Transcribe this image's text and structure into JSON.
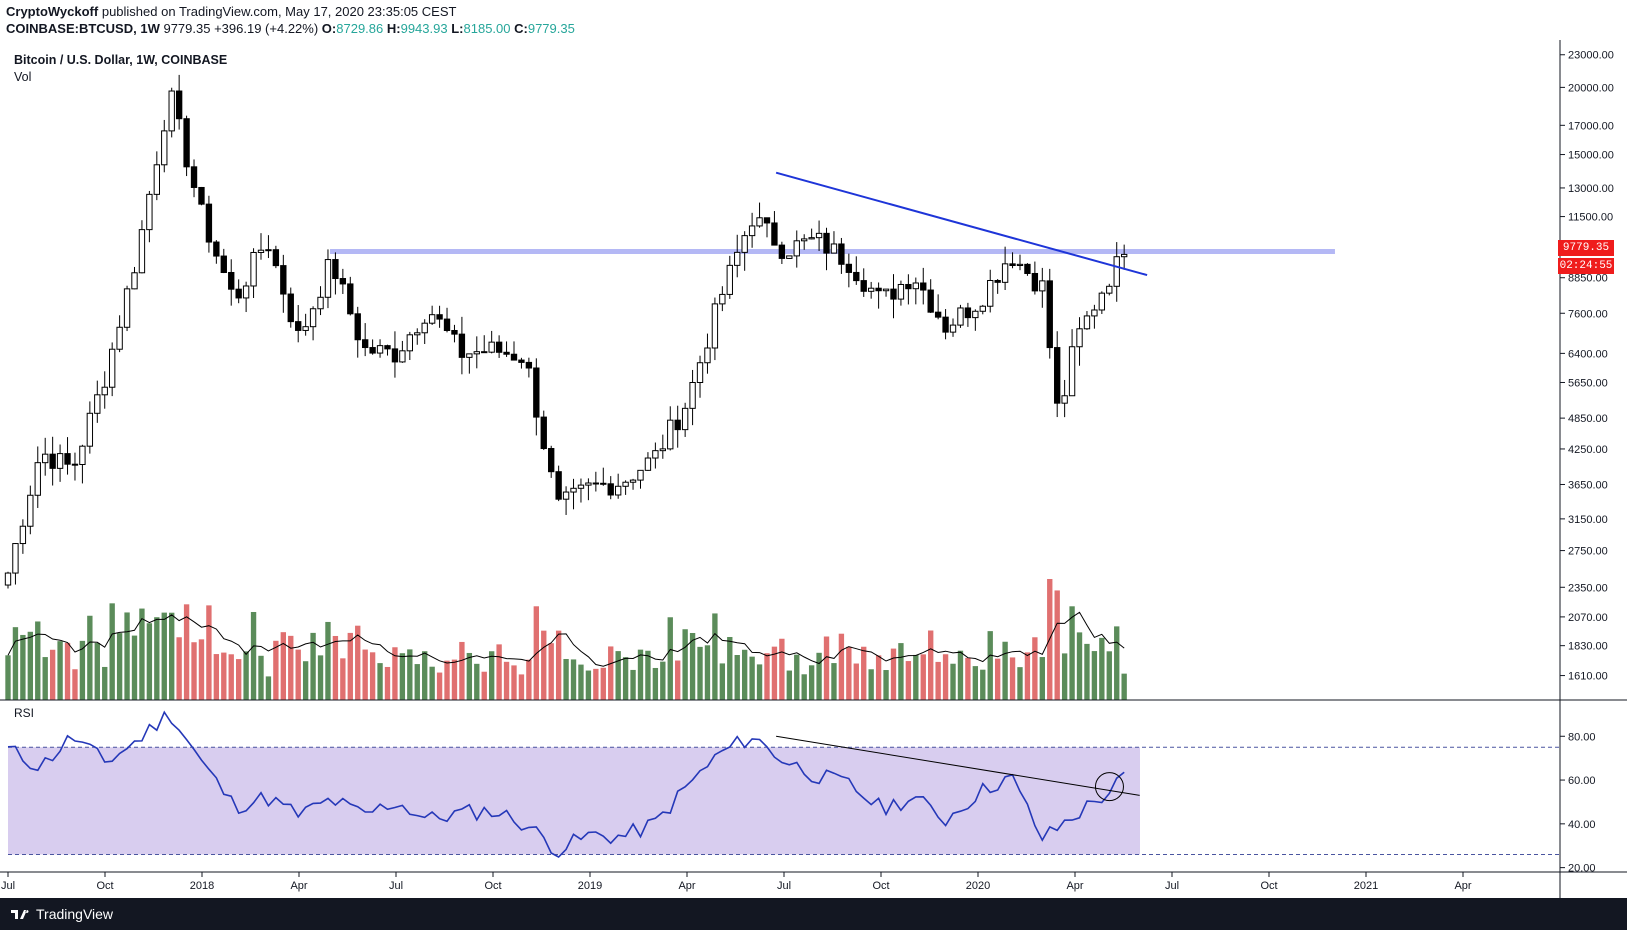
{
  "header": {
    "author": "CryptoWyckoff",
    "published": "published on TradingView.com, May 17, 2020 23:35:05 CEST",
    "symbol": "COINBASE:BTCUSD, 1W",
    "last": "9779.35",
    "change": "+396.19 (+4.22%)",
    "o_label": "O:",
    "o": "8729.86",
    "h_label": "H:",
    "h": "9943.93",
    "l_label": "L:",
    "l": "8185.00",
    "c_label": "C:",
    "c": "9779.35"
  },
  "legend": {
    "title": "Bitcoin / U.S. Dollar, 1W, COINBASE",
    "vol": "Vol"
  },
  "rsi_label": "RSI",
  "price_tag": {
    "last": "9779.35",
    "countdown": "02:24:55"
  },
  "footer": {
    "brand": "TradingView"
  },
  "colors": {
    "up_volume": "#5b8c5a",
    "down_volume": "#e07070",
    "trendline": "#1e35d8",
    "resistance": "#b4b8f5",
    "rsi_line": "#2538b8",
    "rsi_band": "#d8cdef",
    "tag": "#ef1c1c"
  },
  "chart_data": [
    {
      "type": "candlestick",
      "scale": "log",
      "ylim": [
        1450,
        24500
      ],
      "y_ticks": [
        "1610.00",
        "1830.00",
        "2070.00",
        "2350.00",
        "2750.00",
        "3150.00",
        "3650.00",
        "4250.00",
        "4850.00",
        "5650.00",
        "6400.00",
        "7600.00",
        "8850.00",
        "10000.00",
        "11500.00",
        "13000.00",
        "15000.00",
        "17000.00",
        "20000.00",
        "23000.00"
      ],
      "x_ticks": [
        "Jul",
        "Oct",
        "2018",
        "Apr",
        "Jul",
        "Oct",
        "2019",
        "Apr",
        "Jul",
        "Oct",
        "2020",
        "Apr",
        "Jul",
        "Oct",
        "2021",
        "Apr"
      ],
      "anchors": [
        {
          "date": "2017-07",
          "price": 2500
        },
        {
          "date": "2017-08",
          "price": 4200
        },
        {
          "date": "2017-09",
          "price": 3900
        },
        {
          "date": "2017-10",
          "price": 5800
        },
        {
          "date": "2017-11",
          "price": 9800
        },
        {
          "date": "2017-12",
          "price": 19500
        },
        {
          "date": "2018-01",
          "price": 11500
        },
        {
          "date": "2018-02",
          "price": 8000
        },
        {
          "date": "2018-03",
          "price": 10500
        },
        {
          "date": "2018-04",
          "price": 6800
        },
        {
          "date": "2018-05",
          "price": 9500
        },
        {
          "date": "2018-06",
          "price": 6500
        },
        {
          "date": "2018-07",
          "price": 6400
        },
        {
          "date": "2018-08",
          "price": 7800
        },
        {
          "date": "2018-09",
          "price": 6400
        },
        {
          "date": "2018-10",
          "price": 6500
        },
        {
          "date": "2018-11",
          "price": 6300
        },
        {
          "date": "2018-12",
          "price": 3300
        },
        {
          "date": "2019-01",
          "price": 3600
        },
        {
          "date": "2019-02",
          "price": 3700
        },
        {
          "date": "2019-03",
          "price": 4100
        },
        {
          "date": "2019-04",
          "price": 5200
        },
        {
          "date": "2019-05",
          "price": 8000
        },
        {
          "date": "2019-06",
          "price": 11500
        },
        {
          "date": "2019-07",
          "price": 10000
        },
        {
          "date": "2019-08",
          "price": 10400
        },
        {
          "date": "2019-09",
          "price": 9500
        },
        {
          "date": "2019-10",
          "price": 8000
        },
        {
          "date": "2019-11",
          "price": 9000
        },
        {
          "date": "2019-12",
          "price": 7200
        },
        {
          "date": "2020-01",
          "price": 8000
        },
        {
          "date": "2020-02",
          "price": 9800
        },
        {
          "date": "2020-03",
          "price": 8500
        },
        {
          "date": "2020-03-16",
          "price": 4800
        },
        {
          "date": "2020-04",
          "price": 6700
        },
        {
          "date": "2020-05",
          "price": 8800
        },
        {
          "date": "2020-05-17",
          "price": 9779.35
        }
      ],
      "horizontal_resistance": 9900,
      "trendline": [
        {
          "date": "2019-06-24",
          "price": 13880
        },
        {
          "date": "2020-06-08",
          "price": 8950
        }
      ]
    },
    {
      "type": "bar",
      "name": "Vol",
      "note": "weekly volume bars, green up / red down, with moving average line"
    },
    {
      "type": "line",
      "name": "RSI",
      "ylim": [
        18,
        92
      ],
      "y_ticks": [
        "20.00",
        "40.00",
        "60.00",
        "80.00"
      ],
      "bands": [
        26,
        75
      ],
      "anchors": [
        {
          "date": "2017-07",
          "value": 74
        },
        {
          "date": "2017-08",
          "value": 66
        },
        {
          "date": "2017-09",
          "value": 80
        },
        {
          "date": "2017-10",
          "value": 68
        },
        {
          "date": "2017-11",
          "value": 78
        },
        {
          "date": "2017-12",
          "value": 91
        },
        {
          "date": "2018-01",
          "value": 68
        },
        {
          "date": "2018-02",
          "value": 48
        },
        {
          "date": "2018-03",
          "value": 52
        },
        {
          "date": "2018-04",
          "value": 44
        },
        {
          "date": "2018-05",
          "value": 51
        },
        {
          "date": "2018-06",
          "value": 44
        },
        {
          "date": "2018-07",
          "value": 50
        },
        {
          "date": "2018-08",
          "value": 42
        },
        {
          "date": "2018-09",
          "value": 45
        },
        {
          "date": "2018-10",
          "value": 46
        },
        {
          "date": "2018-11",
          "value": 40
        },
        {
          "date": "2018-12",
          "value": 28
        },
        {
          "date": "2019-01",
          "value": 35
        },
        {
          "date": "2019-02",
          "value": 34
        },
        {
          "date": "2019-03",
          "value": 40
        },
        {
          "date": "2019-04",
          "value": 57
        },
        {
          "date": "2019-05",
          "value": 72
        },
        {
          "date": "2019-06",
          "value": 80
        },
        {
          "date": "2019-07",
          "value": 69
        },
        {
          "date": "2019-08",
          "value": 62
        },
        {
          "date": "2019-09",
          "value": 58
        },
        {
          "date": "2019-10",
          "value": 47
        },
        {
          "date": "2019-11",
          "value": 52
        },
        {
          "date": "2019-12",
          "value": 42
        },
        {
          "date": "2020-01",
          "value": 54
        },
        {
          "date": "2020-02",
          "value": 62
        },
        {
          "date": "2020-03",
          "value": 33
        },
        {
          "date": "2020-04",
          "value": 44
        },
        {
          "date": "2020-05",
          "value": 54
        },
        {
          "date": "2020-05-17",
          "value": 61
        }
      ],
      "trendline": [
        {
          "date": "2019-06-24",
          "value": 80
        },
        {
          "date": "2020-06-01",
          "value": 53
        }
      ]
    }
  ]
}
